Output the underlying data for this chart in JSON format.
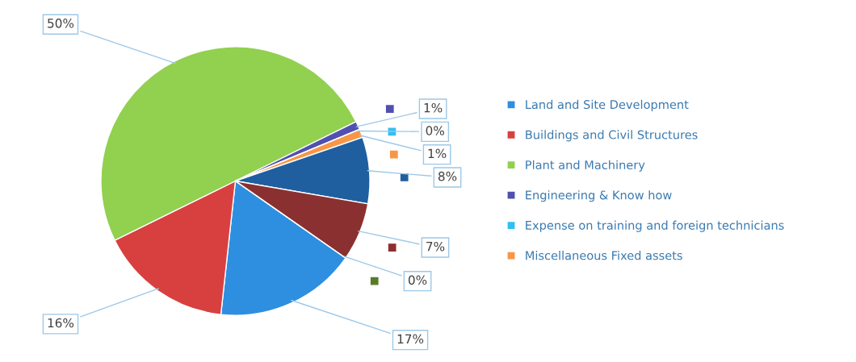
{
  "chart_data": {
    "type": "pie",
    "categories": [
      "Land and Site Development",
      "Buildings and Civil Structures",
      "Plant and Machinery",
      "Engineering & Know how",
      "Expense on training and foreign technicians",
      "Miscellaneous Fixed assets",
      null,
      null,
      null
    ],
    "values": [
      17,
      16,
      50,
      1,
      0,
      1,
      8,
      7,
      0
    ],
    "value_labels": [
      "17%",
      "16%",
      "50%",
      "1%",
      "0%",
      "1%",
      "8%",
      "7%",
      "0%"
    ],
    "colors": [
      "#2e8fe0",
      "#d84040",
      "#92d050",
      "#5050b0",
      "#30c0f0",
      "#f79646",
      "#1f5fa0",
      "#8b3030",
      "#5a7a2a"
    ],
    "legend": "right"
  }
}
